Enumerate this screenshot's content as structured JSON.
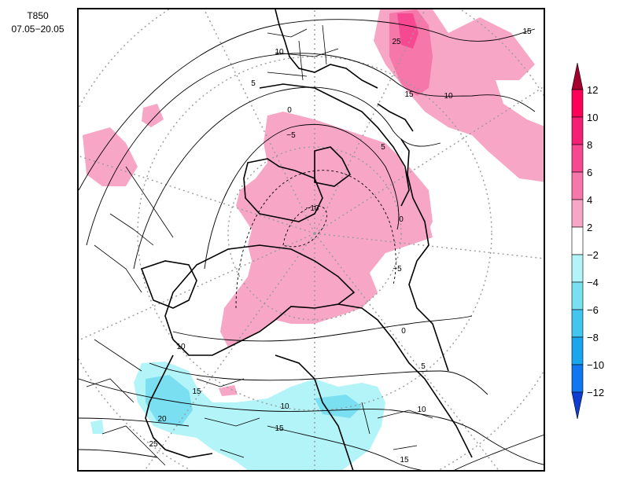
{
  "title": {
    "line1": "T850",
    "line2": "07.05−20.05"
  },
  "colorbar": {
    "levels": [
      "12",
      "10",
      "8",
      "6",
      "4",
      "2",
      "−2",
      "−4",
      "−6",
      "−8",
      "−10",
      "−12"
    ],
    "colors": [
      "#a3002d",
      "#ff0059",
      "#f51f75",
      "#f74892",
      "#f678ab",
      "#f8a6c6",
      "#ffffff",
      "#b2f4f8",
      "#7adff1",
      "#42c6ef",
      "#1aa6ee",
      "#1177f0",
      "#113cd0"
    ]
  },
  "map": {
    "projection": "north-polar-stereographic",
    "contour_labels": [
      "25",
      "15",
      "10",
      "15",
      "10",
      "5",
      "0",
      "−5",
      "−10",
      "5",
      "0",
      "−5",
      "0",
      "5",
      "10",
      "10",
      "15",
      "20",
      "10",
      "15",
      "25",
      "15"
    ]
  }
}
